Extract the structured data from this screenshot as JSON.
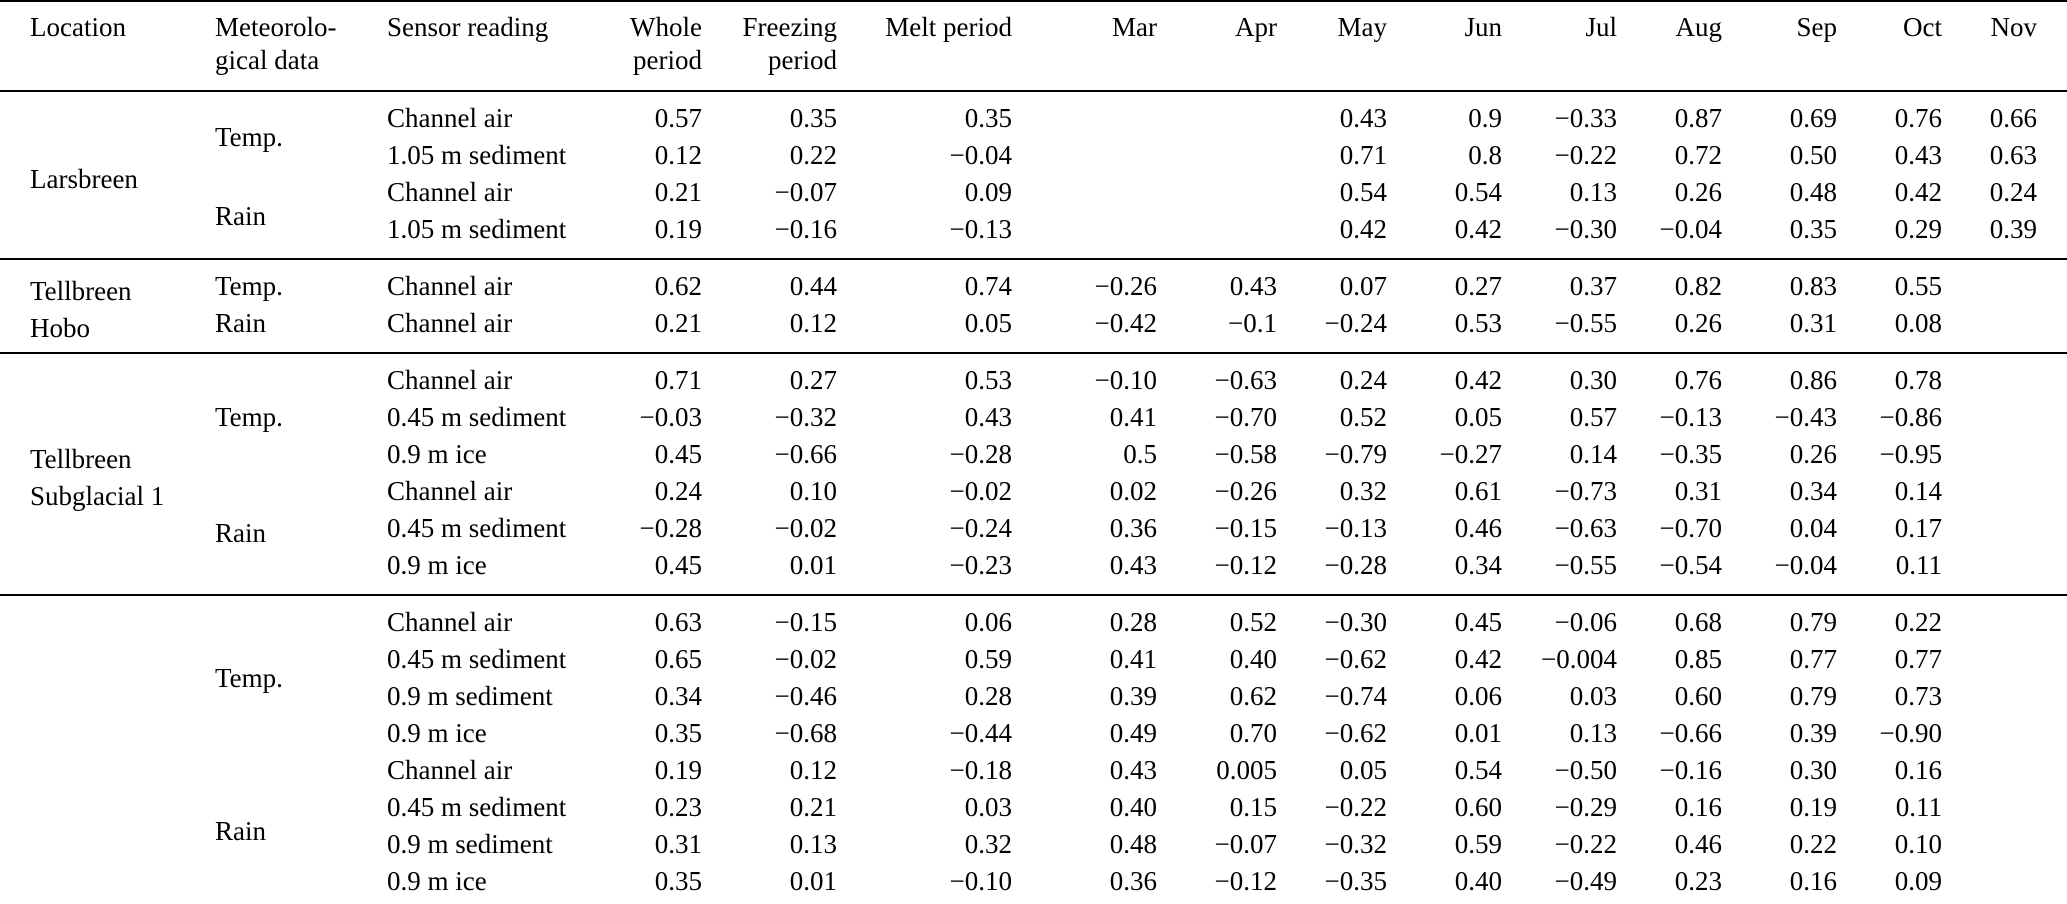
{
  "table": {
    "columns": [
      "Location",
      "Meteorolo-\ngical data",
      "Sensor reading",
      "Whole\nperiod",
      "Freezing\nperiod",
      "Melt period",
      "Mar",
      "Apr",
      "May",
      "Jun",
      "Jul",
      "Aug",
      "Sep",
      "Oct",
      "Nov"
    ],
    "groups": [
      {
        "location": "Larsbreen",
        "subgroups": [
          {
            "met": "Temp.",
            "rows": [
              [
                "Channel air",
                "0.57",
                "0.35",
                "0.35",
                "",
                "",
                "0.43",
                "0.9",
                "−0.33",
                "0.87",
                "0.69",
                "0.76",
                "0.66"
              ],
              [
                "1.05 m sediment",
                "0.12",
                "0.22",
                "−0.04",
                "",
                "",
                "0.71",
                "0.8",
                "−0.22",
                "0.72",
                "0.50",
                "0.43",
                "0.63"
              ]
            ]
          },
          {
            "met": "Rain",
            "rows": [
              [
                "Channel air",
                "0.21",
                "−0.07",
                "0.09",
                "",
                "",
                "0.54",
                "0.54",
                "0.13",
                "0.26",
                "0.48",
                "0.42",
                "0.24"
              ],
              [
                "1.05 m sediment",
                "0.19",
                "−0.16",
                "−0.13",
                "",
                "",
                "0.42",
                "0.42",
                "−0.30",
                "−0.04",
                "0.35",
                "0.29",
                "0.39"
              ]
            ]
          }
        ]
      },
      {
        "location": "Tellbreen\nHobo",
        "subgroups": [
          {
            "met": "Temp.",
            "rows": [
              [
                "Channel air",
                "0.62",
                "0.44",
                "0.74",
                "−0.26",
                "0.43",
                "0.07",
                "0.27",
                "0.37",
                "0.82",
                "0.83",
                "0.55",
                ""
              ]
            ]
          },
          {
            "met": "Rain",
            "rows": [
              [
                "Channel air",
                "0.21",
                "0.12",
                "0.05",
                "−0.42",
                "−0.1",
                "−0.24",
                "0.53",
                "−0.55",
                "0.26",
                "0.31",
                "0.08",
                ""
              ]
            ]
          }
        ]
      },
      {
        "location": "Tellbreen\nSubglacial 1",
        "subgroups": [
          {
            "met": "Temp.",
            "rows": [
              [
                "Channel air",
                "0.71",
                "0.27",
                "0.53",
                "−0.10",
                "−0.63",
                "0.24",
                "0.42",
                "0.30",
                "0.76",
                "0.86",
                "0.78",
                ""
              ],
              [
                "0.45 m sediment",
                "−0.03",
                "−0.32",
                "0.43",
                "0.41",
                "−0.70",
                "0.52",
                "0.05",
                "0.57",
                "−0.13",
                "−0.43",
                "−0.86",
                ""
              ],
              [
                "0.9 m ice",
                "0.45",
                "−0.66",
                "−0.28",
                "0.5",
                "−0.58",
                "−0.79",
                "−0.27",
                "0.14",
                "−0.35",
                "0.26",
                "−0.95",
                ""
              ]
            ]
          },
          {
            "met": "Rain",
            "rows": [
              [
                "Channel air",
                "0.24",
                "0.10",
                "−0.02",
                "0.02",
                "−0.26",
                "0.32",
                "0.61",
                "−0.73",
                "0.31",
                "0.34",
                "0.14",
                ""
              ],
              [
                "0.45 m sediment",
                "−0.28",
                "−0.02",
                "−0.24",
                "0.36",
                "−0.15",
                "−0.13",
                "0.46",
                "−0.63",
                "−0.70",
                "0.04",
                "0.17",
                ""
              ],
              [
                "0.9 m ice",
                "0.45",
                "0.01",
                "−0.23",
                "0.43",
                "−0.12",
                "−0.28",
                "0.34",
                "−0.55",
                "−0.54",
                "−0.04",
                "0.11",
                ""
              ]
            ]
          }
        ]
      },
      {
        "location": "",
        "subgroups": [
          {
            "met": "Temp.",
            "rows": [
              [
                "Channel air",
                "0.63",
                "−0.15",
                "0.06",
                "0.28",
                "0.52",
                "−0.30",
                "0.45",
                "−0.06",
                "0.68",
                "0.79",
                "0.22",
                ""
              ],
              [
                "0.45 m sediment",
                "0.65",
                "−0.02",
                "0.59",
                "0.41",
                "0.40",
                "−0.62",
                "0.42",
                "−0.004",
                "0.85",
                "0.77",
                "0.77",
                ""
              ],
              [
                "0.9 m sediment",
                "0.34",
                "−0.46",
                "0.28",
                "0.39",
                "0.62",
                "−0.74",
                "0.06",
                "0.03",
                "0.60",
                "0.79",
                "0.73",
                ""
              ],
              [
                "0.9 m ice",
                "0.35",
                "−0.68",
                "−0.44",
                "0.49",
                "0.70",
                "−0.62",
                "0.01",
                "0.13",
                "−0.66",
                "0.39",
                "−0.90",
                ""
              ]
            ]
          },
          {
            "met": "Rain",
            "rows": [
              [
                "Channel air",
                "0.19",
                "0.12",
                "−0.18",
                "0.43",
                "0.005",
                "0.05",
                "0.54",
                "−0.50",
                "−0.16",
                "0.30",
                "0.16",
                ""
              ],
              [
                "0.45 m sediment",
                "0.23",
                "0.21",
                "0.03",
                "0.40",
                "0.15",
                "−0.22",
                "0.60",
                "−0.29",
                "0.16",
                "0.19",
                "0.11",
                ""
              ],
              [
                "0.9 m sediment",
                "0.31",
                "0.13",
                "0.32",
                "0.48",
                "−0.07",
                "−0.32",
                "0.59",
                "−0.22",
                "0.46",
                "0.22",
                "0.10",
                ""
              ],
              [
                "0.9 m ice",
                "0.35",
                "0.01",
                "−0.10",
                "0.36",
                "−0.12",
                "−0.35",
                "0.40",
                "−0.49",
                "0.23",
                "0.16",
                "0.09",
                ""
              ]
            ]
          }
        ]
      }
    ]
  }
}
